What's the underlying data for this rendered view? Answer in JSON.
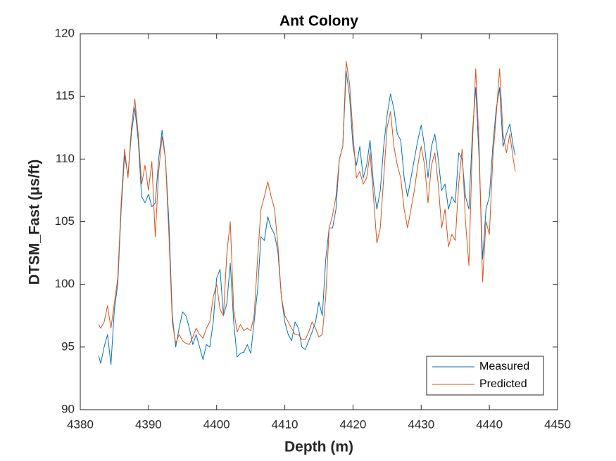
{
  "chart_data": {
    "type": "line",
    "title": "Ant Colony",
    "x_label": "Depth (m)",
    "y_label": "DTSM_Fast (μs/ft)",
    "xlim": [
      4380,
      4450
    ],
    "xticks": [
      4380,
      4390,
      4400,
      4410,
      4420,
      4430,
      4440,
      4450
    ],
    "ylim": [
      90,
      120
    ],
    "yticks": [
      90,
      95,
      100,
      105,
      110,
      115,
      120
    ],
    "grid": false,
    "legend": "lower right",
    "x": [
      4382.7,
      4383,
      4383.5,
      4384,
      4384.5,
      4385,
      4385.5,
      4386,
      4386.5,
      4387,
      4387.5,
      4388,
      4388.5,
      4389,
      4389.5,
      4390,
      4390.5,
      4391,
      4391.5,
      4392,
      4392.5,
      4393,
      4393.5,
      4394,
      4394.5,
      4395,
      4395.5,
      4396,
      4396.5,
      4397,
      4397.5,
      4398,
      4398.5,
      4399,
      4399.5,
      4400,
      4400.5,
      4401,
      4401.5,
      4402,
      4402.5,
      4403,
      4403.5,
      4404,
      4404.5,
      4405,
      4405.5,
      4406,
      4406.5,
      4407,
      4407.5,
      4408,
      4408.5,
      4409,
      4409.5,
      4410,
      4410.5,
      4411,
      4411.5,
      4412,
      4412.5,
      4413,
      4413.5,
      4414,
      4414.5,
      4415,
      4415.5,
      4416,
      4416.5,
      4417,
      4417.5,
      4418,
      4418.5,
      4419,
      4419.5,
      4420,
      4420.5,
      4421,
      4421.5,
      4422,
      4422.5,
      4423,
      4423.5,
      4424,
      4424.5,
      4425,
      4425.5,
      4426,
      4426.5,
      4427,
      4427.5,
      4428,
      4428.5,
      4429,
      4429.5,
      4430,
      4430.5,
      4431,
      4431.5,
      4432,
      4432.5,
      4433,
      4433.5,
      4434,
      4434.5,
      4435,
      4435.5,
      4436,
      4436.5,
      4437,
      4437.5,
      4438,
      4438.5,
      4439,
      4439.5,
      4440,
      4440.5,
      4441,
      4441.5,
      4442,
      4442.5,
      4443,
      4443.5,
      4443.8
    ],
    "series": [
      {
        "name": "Measured",
        "color": "#0072BD",
        "values": [
          94.3,
          93.7,
          95,
          96,
          93.6,
          98,
          100,
          106,
          110.3,
          108.7,
          112,
          114.1,
          111.5,
          107,
          106.5,
          107.2,
          106.2,
          106.5,
          110,
          112.3,
          110,
          105,
          97.5,
          95,
          96.5,
          97.8,
          97.5,
          96.5,
          95.2,
          96,
          95,
          94,
          95.2,
          95,
          97,
          100.5,
          101.2,
          97.5,
          98.5,
          101.7,
          97,
          94.2,
          94.5,
          94.6,
          95.2,
          94.5,
          97,
          99.5,
          103.8,
          103.5,
          105.4,
          104.5,
          104,
          102.5,
          99,
          97,
          96,
          95.5,
          97,
          96.5,
          95,
          94.8,
          95.5,
          96.2,
          97,
          98.6,
          97.5,
          102,
          104.5,
          104.5,
          106,
          110,
          111,
          117,
          115,
          111,
          109.5,
          111,
          108.5,
          109.5,
          111.5,
          108,
          106,
          107.5,
          111,
          113.5,
          115.2,
          114,
          112,
          111.5,
          108.5,
          107,
          108.5,
          110,
          111.5,
          112.7,
          111,
          108.5,
          111,
          112,
          110,
          107.5,
          108,
          106,
          107,
          106.5,
          110.5,
          110,
          107,
          106,
          112,
          115.7,
          110,
          102,
          106,
          107,
          111,
          114,
          115.7,
          111,
          112,
          112.8,
          111,
          110.3
        ]
      },
      {
        "name": "Predicted",
        "color": "#D95319",
        "values": [
          96.8,
          96.5,
          97,
          98.3,
          96.5,
          98.5,
          100.5,
          106.5,
          110.8,
          108.5,
          112.5,
          114.8,
          112,
          108,
          109.5,
          107.5,
          109.8,
          103.8,
          109,
          111.8,
          110,
          104,
          97,
          95.3,
          96,
          95.5,
          95.3,
          95.2,
          95.8,
          96.5,
          96,
          95.7,
          96.5,
          97,
          99,
          100,
          98,
          97.5,
          102.5,
          105,
          98,
          96.2,
          96.8,
          96.3,
          96.5,
          96.3,
          97.5,
          102,
          106,
          107,
          108.2,
          107,
          106,
          103,
          99,
          97.5,
          97,
          96.5,
          96,
          96,
          95.6,
          95.6,
          96.2,
          97,
          96.5,
          95.8,
          96,
          99,
          104.5,
          105.5,
          107,
          110,
          111,
          117.8,
          116,
          112,
          108.5,
          109,
          108,
          108.5,
          110.5,
          107,
          103.3,
          104.5,
          108.5,
          112.5,
          113.8,
          111,
          109.5,
          108.5,
          106,
          104.5,
          106,
          107.5,
          109.5,
          111,
          109.5,
          106.5,
          109.5,
          110.5,
          108,
          104.5,
          106,
          103,
          104,
          103.5,
          108,
          110.8,
          105,
          101.5,
          111,
          117.2,
          111,
          100.2,
          105,
          104,
          110,
          113.5,
          117.2,
          112,
          110.5,
          112,
          110,
          109
        ]
      }
    ]
  }
}
